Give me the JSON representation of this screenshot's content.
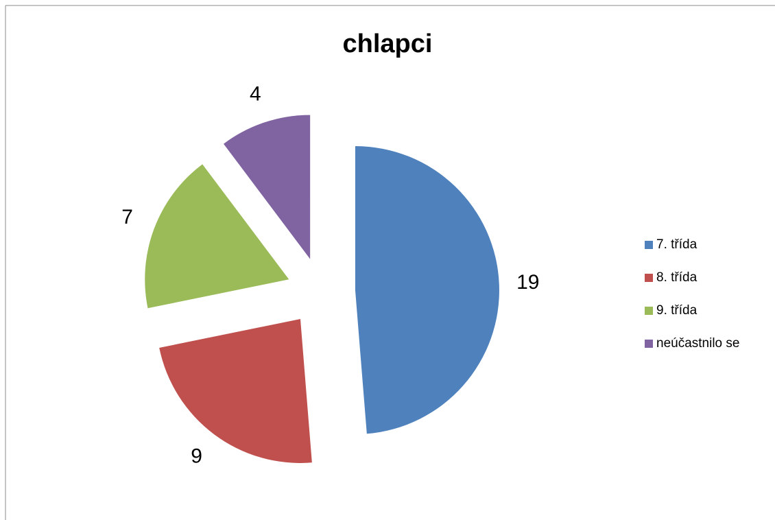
{
  "chart_data": {
    "type": "pie",
    "title": "chlapci",
    "categories": [
      "7. třída",
      "8. třída",
      "9. třída",
      "neúčastnilo se"
    ],
    "values": [
      19,
      9,
      7,
      4
    ],
    "colors": [
      "#4f81bd",
      "#c0504d",
      "#9bbb59",
      "#8064a2"
    ],
    "exploded": true,
    "legend": "right"
  }
}
